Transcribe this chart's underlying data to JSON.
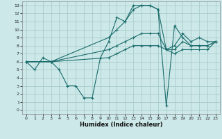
{
  "xlabel": "Humidex (Indice chaleur)",
  "bg_color": "#cce8e8",
  "grid_color": "#aacccc",
  "line_color": "#1a6b6b",
  "xlim": [
    -0.5,
    23.5
  ],
  "ylim": [
    -0.5,
    13.5
  ],
  "xticks": [
    0,
    1,
    2,
    3,
    4,
    5,
    6,
    7,
    8,
    9,
    10,
    11,
    12,
    13,
    14,
    15,
    16,
    17,
    18,
    19,
    20,
    21,
    22,
    23
  ],
  "yticks": [
    0,
    1,
    2,
    3,
    4,
    5,
    6,
    7,
    8,
    9,
    10,
    11,
    12,
    13
  ],
  "series": [
    {
      "x": [
        0,
        1,
        2,
        3,
        4,
        5,
        6,
        7,
        8,
        9,
        10,
        11,
        12,
        13,
        14,
        15,
        16,
        17,
        18,
        19,
        20,
        21,
        22,
        23
      ],
      "y": [
        6,
        5,
        6.5,
        6,
        5,
        3,
        3,
        1.5,
        1.5,
        6.5,
        8.5,
        11.5,
        11,
        13,
        13,
        13,
        12.5,
        0.5,
        10.5,
        9,
        8,
        8,
        8,
        8.5
      ]
    },
    {
      "x": [
        0,
        3,
        10,
        11,
        12,
        13,
        14,
        15,
        16,
        17,
        18,
        19,
        20,
        21,
        22,
        23
      ],
      "y": [
        6,
        6,
        9,
        10,
        11,
        12.5,
        13,
        13,
        12.5,
        7.5,
        8,
        9.5,
        8.5,
        9,
        8.5,
        8.5
      ]
    },
    {
      "x": [
        0,
        3,
        10,
        11,
        12,
        13,
        14,
        15,
        16,
        17,
        18,
        19,
        20,
        21,
        22,
        23
      ],
      "y": [
        6,
        6,
        7.5,
        8,
        8.5,
        9,
        9.5,
        9.5,
        9.5,
        7.5,
        7.5,
        8.5,
        8,
        8,
        8,
        8.5
      ]
    },
    {
      "x": [
        0,
        3,
        10,
        11,
        12,
        13,
        14,
        15,
        16,
        17,
        18,
        19,
        20,
        21,
        22,
        23
      ],
      "y": [
        6,
        6,
        6.5,
        7,
        7.5,
        8,
        8,
        8,
        8,
        7.5,
        7,
        7.5,
        7.5,
        7.5,
        7.5,
        8.5
      ]
    }
  ]
}
